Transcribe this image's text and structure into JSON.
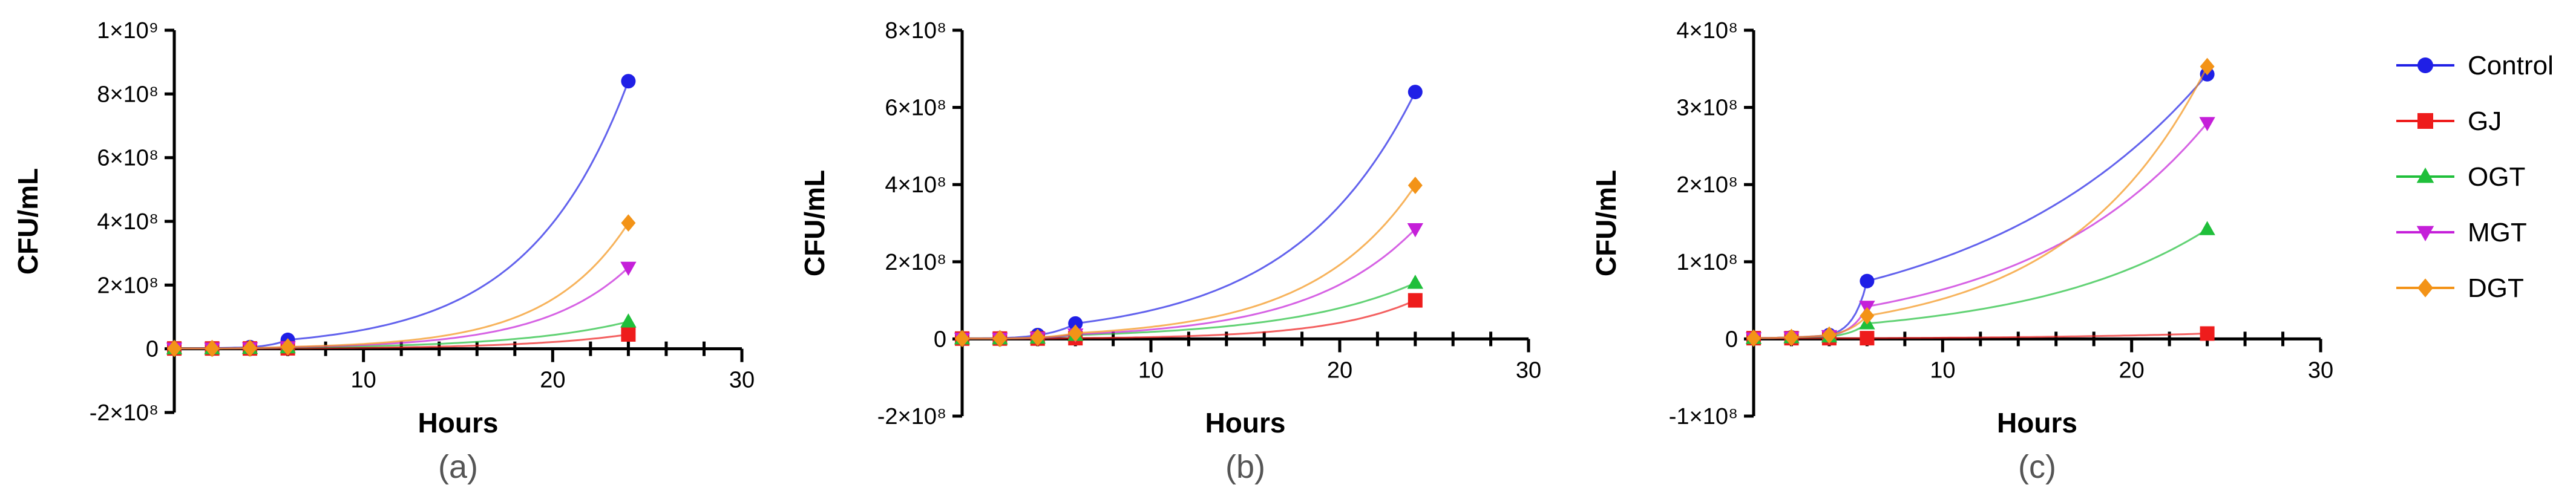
{
  "legend": {
    "entries": [
      {
        "name": "Control",
        "color": "#1f1fe6",
        "marker": "circle"
      },
      {
        "name": "GJ",
        "color": "#ee1c1c",
        "marker": "square"
      },
      {
        "name": "OGT",
        "color": "#1fbf3a",
        "marker": "triangle-up"
      },
      {
        "name": "MGT",
        "color": "#c51fd9",
        "marker": "triangle-down"
      },
      {
        "name": "DGT",
        "color": "#f39317",
        "marker": "diamond"
      }
    ]
  },
  "chart_data": [
    {
      "type": "line",
      "panel_label": "(a)",
      "xlabel": "Hours",
      "ylabel": "CFU/mL",
      "xlim": [
        0,
        30
      ],
      "ylim": [
        -200000000,
        1000000000
      ],
      "xticks": [
        10,
        20,
        30
      ],
      "xtick_labels": [
        "10",
        "20",
        "30"
      ],
      "yticks": [
        -200000000,
        0,
        200000000,
        400000000,
        600000000,
        800000000,
        1000000000
      ],
      "ytick_labels": [
        "-2×10⁸",
        "0",
        "2×10⁸",
        "4×10⁸",
        "6×10⁸",
        "8×10⁸",
        "1×10⁹"
      ],
      "x": [
        0,
        2,
        4,
        6,
        24
      ],
      "series": [
        {
          "name": "Control",
          "values": [
            1000000,
            2000000,
            5000000,
            28000000,
            840000000
          ]
        },
        {
          "name": "GJ",
          "values": [
            1000000,
            1000000,
            1000000,
            1500000,
            45000000
          ]
        },
        {
          "name": "OGT",
          "values": [
            1000000,
            1000000,
            2000000,
            4000000,
            85000000
          ]
        },
        {
          "name": "MGT",
          "values": [
            1000000,
            1000000,
            2000000,
            5000000,
            255000000
          ]
        },
        {
          "name": "DGT",
          "values": [
            1000000,
            1000000,
            2000000,
            6000000,
            395000000
          ]
        }
      ]
    },
    {
      "type": "line",
      "panel_label": "(b)",
      "xlabel": "Hours",
      "ylabel": "CFU/mL",
      "xlim": [
        0,
        30
      ],
      "ylim": [
        -200000000,
        800000000
      ],
      "xticks": [
        10,
        20,
        30
      ],
      "xtick_labels": [
        "10",
        "20",
        "30"
      ],
      "yticks": [
        -200000000,
        0,
        200000000,
        400000000,
        600000000,
        800000000
      ],
      "ytick_labels": [
        "-2×10⁸",
        "0",
        "2×10⁸",
        "4×10⁸",
        "6×10⁸",
        "8×10⁸"
      ],
      "x": [
        0,
        2,
        4,
        6,
        24
      ],
      "series": [
        {
          "name": "Control",
          "values": [
            1000000,
            2000000,
            10000000,
            40000000,
            640000000
          ]
        },
        {
          "name": "GJ",
          "values": [
            1000000,
            1000000,
            1000000,
            2000000,
            100000000
          ]
        },
        {
          "name": "OGT",
          "values": [
            1000000,
            1000000,
            3000000,
            10000000,
            145000000
          ]
        },
        {
          "name": "MGT",
          "values": [
            1000000,
            1000000,
            3000000,
            12000000,
            285000000
          ]
        },
        {
          "name": "DGT",
          "values": [
            1000000,
            1000000,
            4000000,
            15000000,
            398000000
          ]
        }
      ]
    },
    {
      "type": "line",
      "panel_label": "(c)",
      "xlabel": "Hours",
      "ylabel": "CFU/mL",
      "xlim": [
        0,
        30
      ],
      "ylim": [
        -100000000,
        400000000
      ],
      "xticks": [
        10,
        20,
        30
      ],
      "xtick_labels": [
        "10",
        "20",
        "30"
      ],
      "yticks": [
        -100000000,
        0,
        100000000,
        200000000,
        300000000,
        400000000
      ],
      "ytick_labels": [
        "-1×10⁸",
        "0",
        "1×10⁸",
        "2×10⁸",
        "3×10⁸",
        "4×10⁸"
      ],
      "x": [
        0,
        2,
        4,
        6,
        24
      ],
      "series": [
        {
          "name": "Control",
          "values": [
            1000000,
            2000000,
            5000000,
            75000000,
            343000000
          ]
        },
        {
          "name": "GJ",
          "values": [
            1000000,
            1000000,
            1000000,
            1000000,
            7000000
          ]
        },
        {
          "name": "OGT",
          "values": [
            1000000,
            2000000,
            3000000,
            20000000,
            142000000
          ]
        },
        {
          "name": "MGT",
          "values": [
            1000000,
            2000000,
            4000000,
            42000000,
            280000000
          ]
        },
        {
          "name": "DGT",
          "values": [
            1000000,
            2000000,
            5000000,
            30000000,
            353000000
          ]
        }
      ]
    }
  ]
}
